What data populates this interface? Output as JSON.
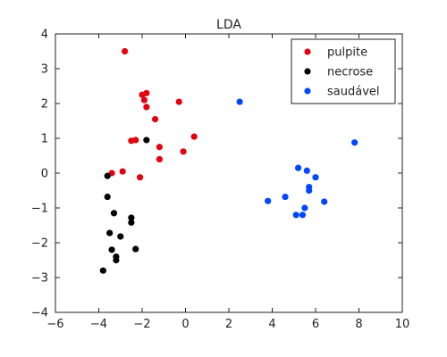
{
  "chart_data": {
    "type": "scatter",
    "title": "LDA",
    "xlabel": "",
    "ylabel": "",
    "xlim": [
      -6,
      10
    ],
    "ylim": [
      -4,
      4
    ],
    "xticks": [
      -6,
      -4,
      -2,
      0,
      2,
      4,
      6,
      8,
      10
    ],
    "yticks": [
      4,
      3,
      2,
      1,
      0,
      -1,
      -2,
      -3,
      -4
    ],
    "grid": false,
    "legend_position": "top-right",
    "series": [
      {
        "name": "pulpite",
        "color": "#e3000f",
        "points": [
          [
            -2.8,
            3.5
          ],
          [
            -2.0,
            2.25
          ],
          [
            -1.8,
            2.3
          ],
          [
            -1.9,
            2.1
          ],
          [
            -1.8,
            1.9
          ],
          [
            -0.3,
            2.05
          ],
          [
            -1.4,
            1.55
          ],
          [
            0.4,
            1.05
          ],
          [
            -1.2,
            0.75
          ],
          [
            -2.5,
            0.93
          ],
          [
            -2.3,
            0.95
          ],
          [
            -1.2,
            0.4
          ],
          [
            -0.1,
            0.62
          ],
          [
            -3.4,
            0.0
          ],
          [
            -2.9,
            0.05
          ],
          [
            -2.1,
            -0.12
          ]
        ]
      },
      {
        "name": "necrose",
        "color": "#000000",
        "points": [
          [
            -1.8,
            0.95
          ],
          [
            -3.6,
            -0.08
          ],
          [
            -3.6,
            -0.68
          ],
          [
            -3.3,
            -1.15
          ],
          [
            -2.5,
            -1.28
          ],
          [
            -2.5,
            -1.42
          ],
          [
            -3.5,
            -1.72
          ],
          [
            -3.0,
            -1.82
          ],
          [
            -3.4,
            -2.2
          ],
          [
            -2.3,
            -2.18
          ],
          [
            -3.2,
            -2.4
          ],
          [
            -3.2,
            -2.5
          ],
          [
            -3.8,
            -2.8
          ]
        ]
      },
      {
        "name": "saudável",
        "color": "#0047ff",
        "points": [
          [
            2.5,
            2.05
          ],
          [
            7.8,
            0.88
          ],
          [
            5.2,
            0.15
          ],
          [
            5.6,
            0.07
          ],
          [
            6.0,
            -0.12
          ],
          [
            5.7,
            -0.4
          ],
          [
            5.7,
            -0.5
          ],
          [
            4.6,
            -0.68
          ],
          [
            3.8,
            -0.8
          ],
          [
            6.4,
            -0.82
          ],
          [
            5.5,
            -1.0
          ],
          [
            5.1,
            -1.2
          ],
          [
            5.4,
            -1.2
          ]
        ]
      }
    ]
  }
}
